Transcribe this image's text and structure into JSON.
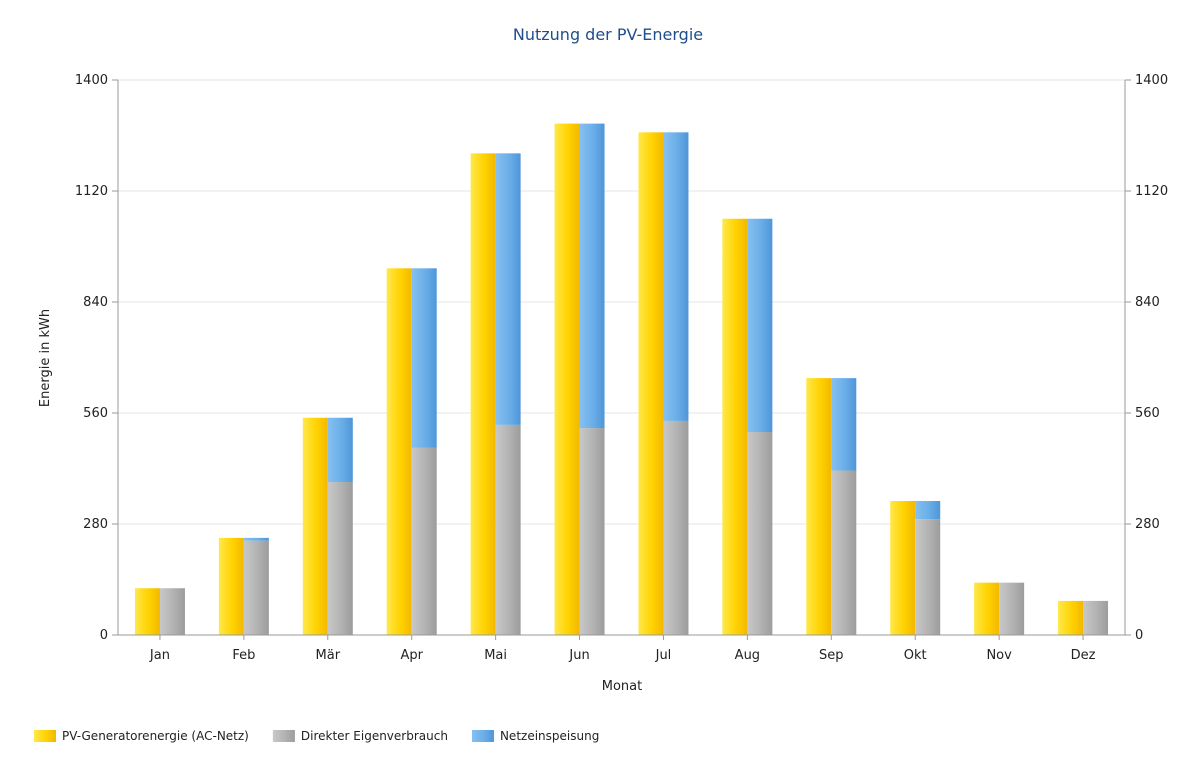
{
  "chart_data": {
    "type": "bar",
    "title": "Nutzung der PV-Energie",
    "xlabel": "Monat",
    "ylabel": "Energie in kWh",
    "ylim": [
      0,
      1400
    ],
    "yticks": [
      0,
      280,
      560,
      840,
      1120,
      1400
    ],
    "categories": [
      "Jan",
      "Feb",
      "Mär",
      "Apr",
      "Mai",
      "Jun",
      "Jul",
      "Aug",
      "Sep",
      "Okt",
      "Nov",
      "Dez"
    ],
    "series": [
      {
        "name": "PV-Generatorenergie (AC-Netz)",
        "color": "#ffd700",
        "stack": "generation",
        "values": [
          118,
          245,
          548,
          925,
          1215,
          1290,
          1268,
          1050,
          648,
          338,
          132,
          86
        ]
      },
      {
        "name": "Direkter Eigenverbrauch",
        "color": "#b4b4b4",
        "stack": "usage",
        "values": [
          118,
          238,
          386,
          472,
          530,
          522,
          540,
          512,
          415,
          292,
          132,
          86
        ]
      },
      {
        "name": "Netzeinspeisung",
        "color": "#6aaee8",
        "stack": "usage",
        "values": [
          0,
          7,
          162,
          453,
          685,
          768,
          728,
          538,
          233,
          46,
          0,
          0
        ]
      }
    ],
    "grid": true,
    "secondary_y_axis": true,
    "legend_position": "bottom-left"
  }
}
